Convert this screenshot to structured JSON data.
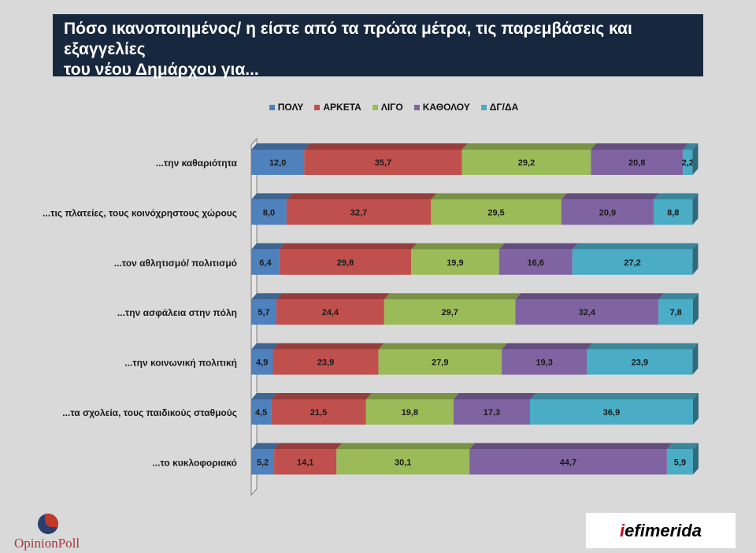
{
  "header": {
    "title_line1": "Πόσο ικανοποιημένος/ η είστε από τα πρώτα μέτρα, τις παρεμβάσεις και εξαγγελίες",
    "title_line2": "του νέου Δημάρχου για..."
  },
  "chart_data": {
    "type": "bar",
    "orientation": "horizontal",
    "stacked": true,
    "style": "3d",
    "title": "Πόσο ικανοποιημένος/ η είστε από τα πρώτα μέτρα, τις παρεμβάσεις και εξαγγελίες του νέου Δημάρχου για...",
    "categories": [
      "...την καθαριότητα",
      "...τις πλατείες, τους κοινόχρηστους χώρους",
      "...τον αθλητισμό/ πολιτισμό",
      "...την ασφάλεια στην πόλη",
      "...την κοινωνική πολιτική",
      "...τα σχολεία, τους παιδικούς σταθμούς",
      "...το κυκλοφοριακό"
    ],
    "series": [
      {
        "name": "ΠΟΛΥ",
        "color": "#4f81bd",
        "values": [
          12.0,
          8.0,
          6.4,
          5.7,
          4.9,
          4.5,
          5.2
        ]
      },
      {
        "name": "ΑΡΚΕΤΑ",
        "color": "#c0504d",
        "values": [
          35.7,
          32.7,
          29.8,
          24.4,
          23.9,
          21.5,
          14.1
        ]
      },
      {
        "name": "ΛΙΓΟ",
        "color": "#9bbb59",
        "values": [
          29.2,
          29.5,
          19.9,
          29.7,
          27.9,
          19.8,
          30.1
        ]
      },
      {
        "name": "ΚΑΘΟΛΟΥ",
        "color": "#8064a2",
        "values": [
          20.8,
          20.9,
          16.6,
          32.4,
          19.3,
          17.3,
          44.7
        ]
      },
      {
        "name": "ΔΓ/ΔΑ",
        "color": "#4bacc6",
        "values": [
          2.2,
          8.8,
          27.2,
          7.8,
          23.9,
          36.9,
          5.9
        ]
      }
    ],
    "value_labels": [
      [
        "12,0",
        "35,7",
        "29,2",
        "20,8",
        "2,2"
      ],
      [
        "8,0",
        "32,7",
        "29,5",
        "20,9",
        "8,8"
      ],
      [
        "6,4",
        "29,8",
        "19,9",
        "16,6",
        "27,2"
      ],
      [
        "5,7",
        "24,4",
        "29,7",
        "32,4",
        "7,8"
      ],
      [
        "4,9",
        "23,9",
        "27,9",
        "19,3",
        "23,9"
      ],
      [
        "4,5",
        "21,5",
        "19,8",
        "17,3",
        "36,9"
      ],
      [
        "5,2",
        "14,1",
        "30,1",
        "44,7",
        "5,9"
      ]
    ],
    "legend_position": "top",
    "xlim": [
      0,
      100
    ]
  },
  "logos": {
    "opinionpoll": "OpinionPoll",
    "iefimerida_bar": "i",
    "iefimerida": "efimerida"
  }
}
